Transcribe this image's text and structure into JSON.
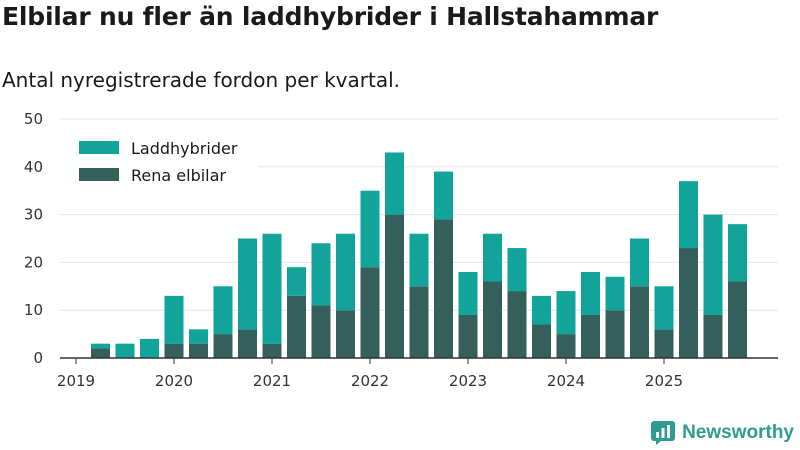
{
  "title": "Elbilar nu fler än laddhybrider i Hallstahammar",
  "subtitle": "Antal nyregistrerade fordon per kvartal.",
  "brand": {
    "name": "Newsworthy",
    "icon": "newsworthy-logo-icon"
  },
  "colors": {
    "ladd": "#12a39b",
    "rena": "#355f5b",
    "axis": "#333333",
    "grid": "#e6e6e6"
  },
  "chart_data": {
    "type": "bar",
    "stacked": true,
    "title": "Elbilar nu fler än laddhybrider i Hallstahammar",
    "subtitle": "Antal nyregistrerade fordon per kvartal.",
    "xlabel": "",
    "ylabel": "",
    "ylim": [
      0,
      50
    ],
    "yticks": [
      0,
      10,
      20,
      30,
      40,
      50
    ],
    "xticks": [
      "2019",
      "2020",
      "2021",
      "2022",
      "2023",
      "2024",
      "2025"
    ],
    "grid": true,
    "legend": "top-left",
    "categories": [
      "2019 Q2",
      "2019 Q3",
      "2019 Q4",
      "2020 Q1",
      "2020 Q2",
      "2020 Q3",
      "2020 Q4",
      "2021 Q1",
      "2021 Q2",
      "2021 Q3",
      "2021 Q4",
      "2022 Q1",
      "2022 Q2",
      "2022 Q3",
      "2022 Q4",
      "2023 Q1",
      "2023 Q2",
      "2023 Q3",
      "2023 Q4",
      "2024 Q1",
      "2024 Q2",
      "2024 Q3",
      "2024 Q4",
      "2025 Q1",
      "2025 Q2",
      "2025 Q3",
      "2025 Q4"
    ],
    "series": [
      {
        "name": "Rena elbilar",
        "values": [
          2,
          0,
          0,
          3,
          3,
          5,
          6,
          3,
          13,
          11,
          10,
          19,
          30,
          15,
          29,
          9,
          16,
          14,
          7,
          5,
          9,
          10,
          15,
          6,
          23,
          9,
          16
        ]
      },
      {
        "name": "Laddhybrider",
        "values": [
          1,
          3,
          4,
          10,
          3,
          10,
          19,
          23,
          6,
          13,
          16,
          16,
          13,
          11,
          10,
          9,
          10,
          9,
          6,
          9,
          9,
          7,
          10,
          9,
          14,
          21,
          12
        ]
      }
    ]
  }
}
